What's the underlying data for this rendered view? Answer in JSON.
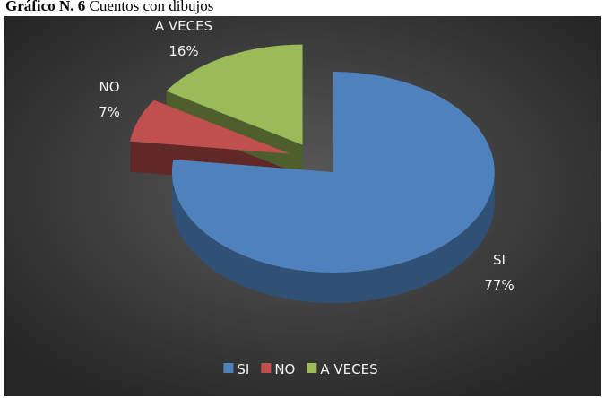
{
  "chart_data": {
    "type": "pie",
    "caption_label": "Gráfico N. 6",
    "title": "Cuentos con dibujos",
    "categories": [
      "SI",
      "NO",
      "A VECES"
    ],
    "values": [
      77,
      7,
      16
    ],
    "value_labels": [
      "77%",
      "7%",
      "16%"
    ],
    "colors": [
      "#4f81bd",
      "#c0504d",
      "#9bbb59"
    ],
    "legend": "bottom"
  }
}
